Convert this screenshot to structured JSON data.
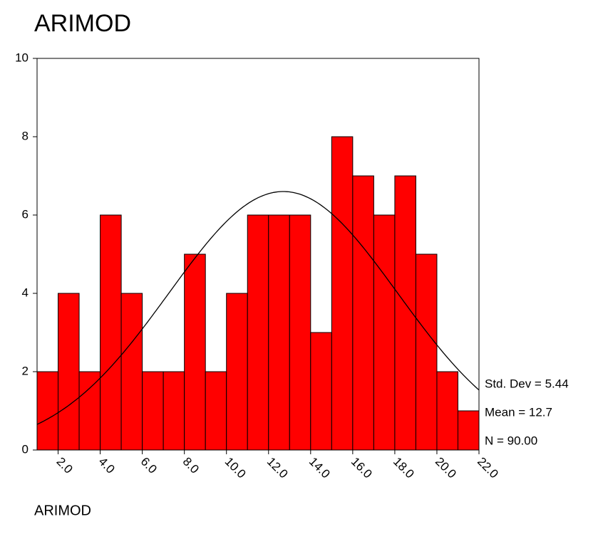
{
  "chart_data": {
    "type": "histogram",
    "title": "ARIMOD",
    "x_label": "ARIMOD",
    "bins": [
      1,
      2,
      3,
      4,
      5,
      6,
      7,
      8,
      9,
      10,
      11,
      12,
      13,
      14,
      15,
      16,
      17,
      18,
      19,
      20,
      21,
      22
    ],
    "values": [
      2,
      4,
      2,
      6,
      4,
      2,
      2,
      5,
      2,
      4,
      6,
      6,
      6,
      3,
      8,
      7,
      6,
      7,
      5,
      2,
      1
    ],
    "color": "#ff0000",
    "xlim": [
      1,
      22
    ],
    "xticks": [
      {
        "value": 2,
        "label": "2.0"
      },
      {
        "value": 4,
        "label": "4.0"
      },
      {
        "value": 6,
        "label": "6.0"
      },
      {
        "value": 8,
        "label": "8.0"
      },
      {
        "value": 10,
        "label": "10.0"
      },
      {
        "value": 12,
        "label": "12.0"
      },
      {
        "value": 14,
        "label": "14.0"
      },
      {
        "value": 16,
        "label": "16.0"
      },
      {
        "value": 18,
        "label": "18.0"
      },
      {
        "value": 20,
        "label": "20.0"
      },
      {
        "value": 22,
        "label": "22.0"
      }
    ],
    "ylim": [
      0,
      10
    ],
    "yticks": [
      0,
      2,
      4,
      6,
      8,
      10
    ],
    "stats": {
      "std_dev": {
        "value": 5.44,
        "label": "Std. Dev = 5.44"
      },
      "mean": {
        "value": 12.7,
        "label": "Mean = 12.7"
      },
      "n": {
        "value": 90,
        "label": "N = 90.00"
      }
    },
    "normal_curve": true
  }
}
